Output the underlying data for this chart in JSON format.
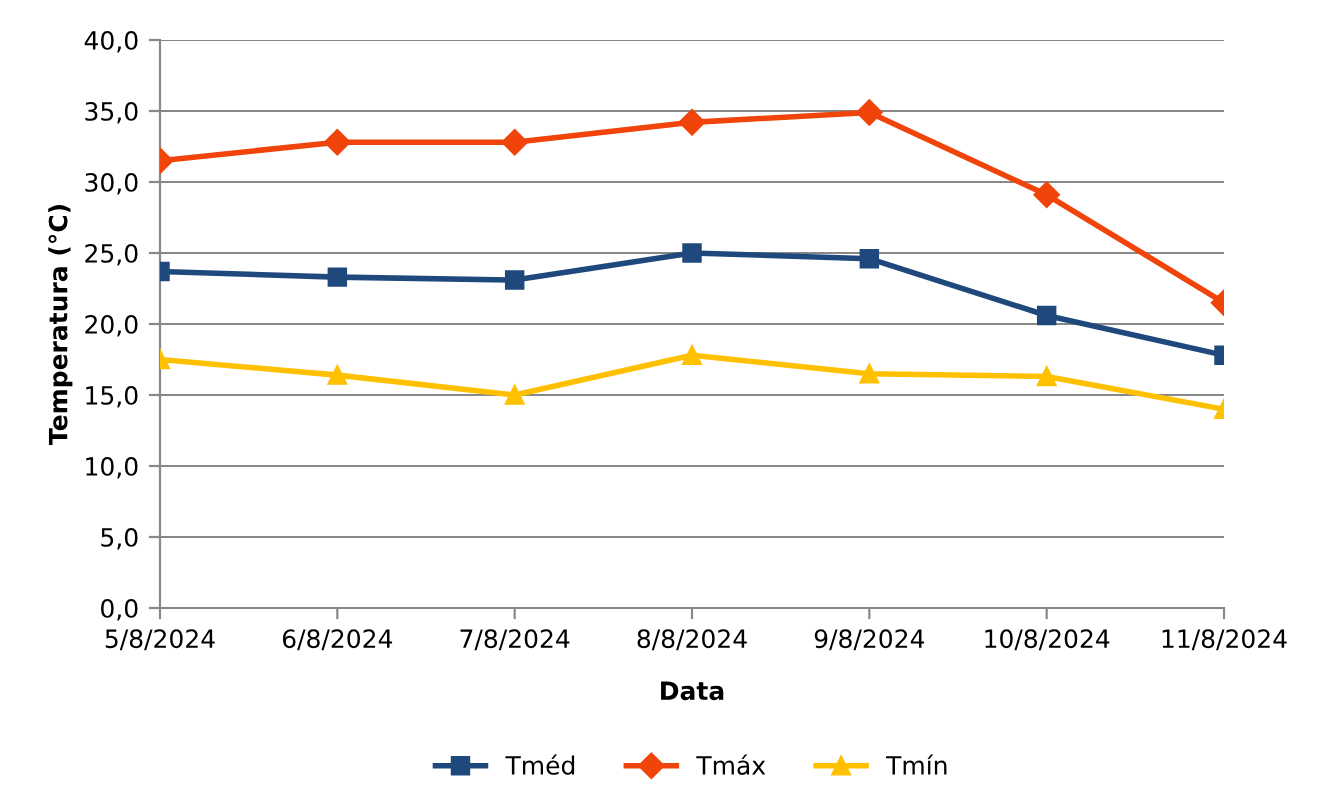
{
  "chart_data": {
    "type": "line",
    "xlabel": "Data",
    "ylabel": "Temperatura (°C)",
    "categories": [
      "5/8/2024",
      "6/8/2024",
      "7/8/2024",
      "8/8/2024",
      "9/8/2024",
      "10/8/2024",
      "11/8/2024"
    ],
    "series": [
      {
        "name": "Tméd",
        "color": "#1f497d",
        "marker": "square",
        "values": [
          23.7,
          23.3,
          23.1,
          25.0,
          24.6,
          20.6,
          17.8
        ]
      },
      {
        "name": "Tmáx",
        "color": "#f0440a",
        "marker": "diamond",
        "values": [
          31.5,
          32.8,
          32.8,
          34.2,
          34.9,
          29.1,
          21.5
        ]
      },
      {
        "name": "Tmín",
        "color": "#ffc000",
        "marker": "triangle",
        "values": [
          17.5,
          16.4,
          15.0,
          17.8,
          16.5,
          16.3,
          14.0
        ]
      }
    ],
    "ylim": [
      0,
      40
    ],
    "yticks": [
      {
        "value": 0,
        "label": "0,0"
      },
      {
        "value": 5,
        "label": "5,0"
      },
      {
        "value": 10,
        "label": "10,0"
      },
      {
        "value": 15,
        "label": "15,0"
      },
      {
        "value": 20,
        "label": "20,0"
      },
      {
        "value": 25,
        "label": "25,0"
      },
      {
        "value": 30,
        "label": "30,0"
      },
      {
        "value": 35,
        "label": "35,0"
      },
      {
        "value": 40,
        "label": "40,0"
      }
    ],
    "grid": "y",
    "legend": "bottom",
    "line_style": "solid"
  }
}
